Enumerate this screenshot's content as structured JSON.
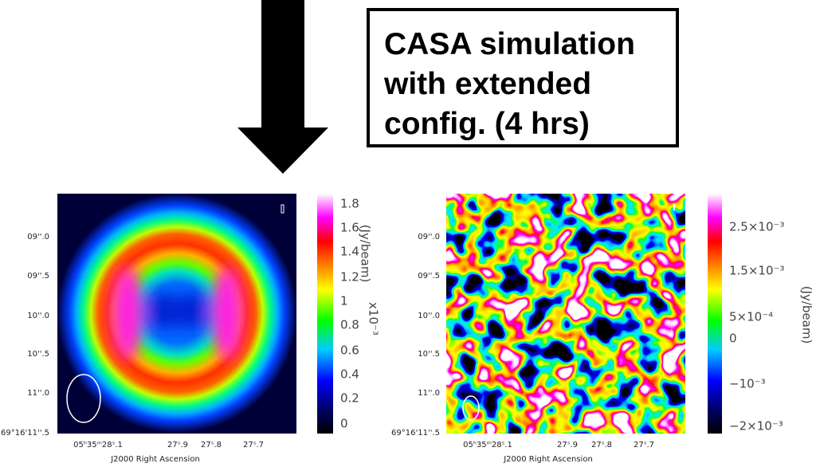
{
  "header": {
    "annotation": [
      "CASA simulation",
      "with extended",
      "config. (4 hrs)"
    ]
  },
  "panels": [
    {
      "y_labels": [
        "09''.0",
        "09''.5",
        "10''.0",
        "10''.5",
        "11''.0",
        "69°16'11''.5"
      ],
      "x_labels": [
        "05ʰ35ᵐ28ˢ.1",
        "27ˢ.9",
        "27ˢ.8",
        "27ˢ.7"
      ],
      "x_title": "J2000 Right Ascension",
      "colorbar": {
        "labels": [
          "1.8",
          "1.6",
          "1.4",
          "1.2",
          "1",
          "0.8",
          "0.6",
          "0.4",
          "0.2",
          "0"
        ],
        "title": "(Jy/beam)",
        "scale": "x10⁻³"
      }
    },
    {
      "y_labels": [
        "09''.0",
        "09''.5",
        "10''.0",
        "10''.5",
        "11''.0",
        "69°16'11''.5"
      ],
      "x_labels": [
        "05ʰ35ᵐ28ˢ.1",
        "27ˢ.9",
        "27ˢ.8",
        "27ˢ.7"
      ],
      "x_title": "J2000 Right Ascension",
      "colorbar": {
        "labels": [
          "2.5×10⁻³",
          "1.5×10⁻³",
          "5×10⁻⁴",
          "0",
          "−10⁻³",
          "−2×10⁻³"
        ],
        "title": "(Jy/beam)"
      }
    }
  ]
}
